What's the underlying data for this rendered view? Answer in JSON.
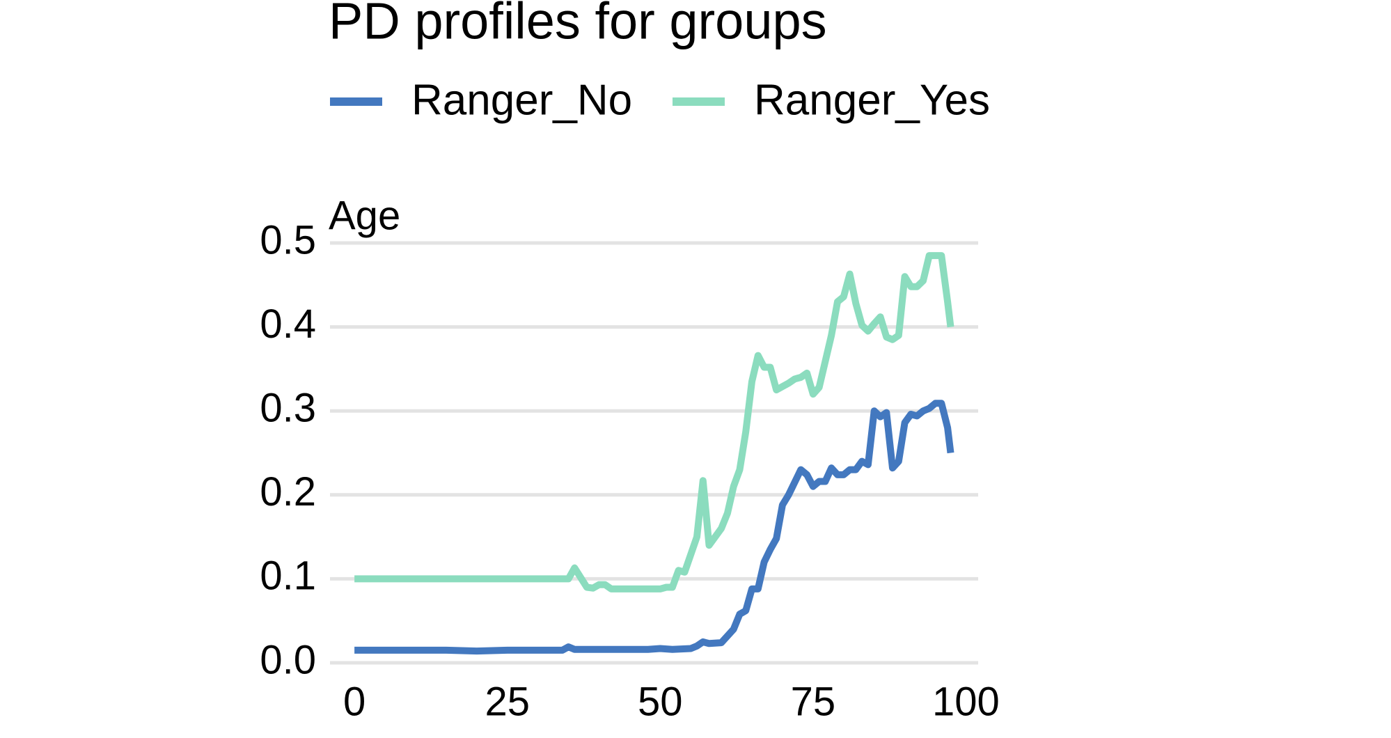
{
  "chart_data": {
    "type": "line",
    "title": "PD profiles for groups",
    "y_label": "Age",
    "series": [
      {
        "name": "Ranger_No",
        "color": "#4378bf",
        "x": [
          0,
          15,
          20,
          25,
          34,
          35,
          36,
          40,
          48,
          50,
          52,
          55,
          56,
          57,
          58,
          60,
          62,
          63,
          64,
          65,
          66,
          67,
          68,
          69,
          70,
          71,
          73,
          74,
          75,
          76,
          77,
          78,
          79,
          80,
          81,
          82,
          83,
          84,
          85,
          86,
          87,
          88,
          89,
          90,
          91,
          92,
          93,
          94,
          95,
          96,
          97,
          97.5
        ],
        "values": [
          0.015,
          0.015,
          0.014,
          0.015,
          0.015,
          0.019,
          0.016,
          0.016,
          0.016,
          0.017,
          0.016,
          0.017,
          0.02,
          0.025,
          0.023,
          0.024,
          0.04,
          0.058,
          0.062,
          0.088,
          0.088,
          0.12,
          0.135,
          0.148,
          0.188,
          0.2,
          0.23,
          0.224,
          0.21,
          0.216,
          0.216,
          0.232,
          0.224,
          0.224,
          0.23,
          0.23,
          0.24,
          0.236,
          0.3,
          0.293,
          0.298,
          0.232,
          0.24,
          0.286,
          0.296,
          0.294,
          0.3,
          0.303,
          0.309,
          0.309,
          0.28,
          0.25
        ]
      },
      {
        "name": "Ranger_Yes",
        "color": "#8bdcbe",
        "x": [
          0,
          35,
          36,
          38,
          39,
          40,
          41,
          42,
          50,
          51,
          52,
          53,
          54,
          56,
          57,
          58,
          60,
          61,
          62,
          63,
          64,
          65,
          66,
          67,
          68,
          69,
          71,
          72,
          73,
          74,
          75,
          76,
          78,
          79,
          80,
          81,
          82,
          83,
          84,
          85,
          86,
          87,
          88,
          89,
          90,
          91,
          92,
          93,
          94,
          96,
          97,
          97.5
        ],
        "values": [
          0.1,
          0.1,
          0.113,
          0.09,
          0.089,
          0.093,
          0.093,
          0.088,
          0.088,
          0.09,
          0.09,
          0.11,
          0.108,
          0.15,
          0.217,
          0.14,
          0.16,
          0.178,
          0.21,
          0.23,
          0.275,
          0.335,
          0.366,
          0.352,
          0.352,
          0.325,
          0.333,
          0.338,
          0.34,
          0.345,
          0.32,
          0.328,
          0.39,
          0.43,
          0.436,
          0.463,
          0.428,
          0.402,
          0.395,
          0.404,
          0.412,
          0.388,
          0.385,
          0.39,
          0.46,
          0.448,
          0.448,
          0.455,
          0.485,
          0.485,
          0.43,
          0.4
        ]
      }
    ],
    "xlim": [
      -4,
      102
    ],
    "xticks": [
      0,
      25,
      50,
      75,
      100
    ],
    "ylim": [
      0,
      0.5
    ],
    "yticks": [
      {
        "value": 0,
        "label": "0.0"
      },
      {
        "value": 0.1,
        "label": "0.1"
      },
      {
        "value": 0.2,
        "label": "0.2"
      },
      {
        "value": 0.3,
        "label": "0.3"
      },
      {
        "value": 0.4,
        "label": "0.4"
      },
      {
        "value": 0.5,
        "label": "0.5"
      }
    ],
    "grid": true
  }
}
